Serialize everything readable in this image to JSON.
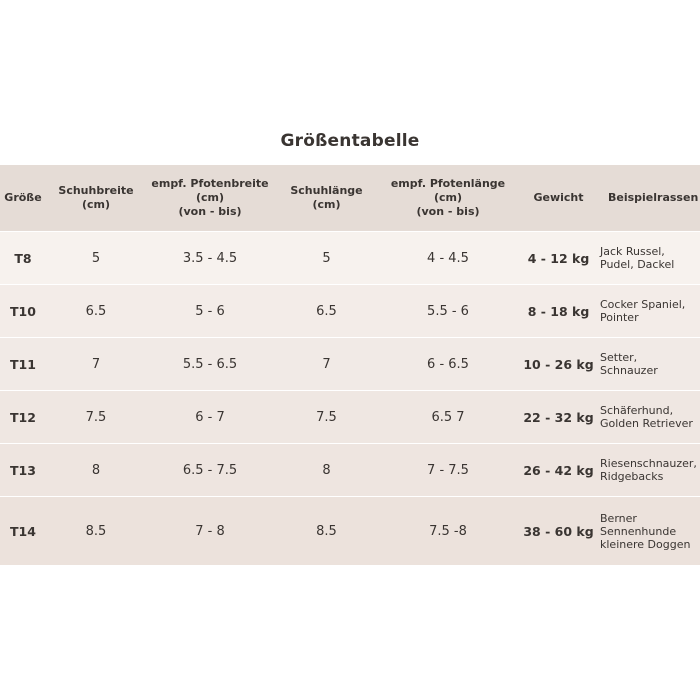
{
  "title": "Größentabelle",
  "columns": [
    "Größe",
    "Schuhbreite\n(cm)",
    "empf. Pfotenbreite\n(cm)\n(von - bis)",
    "Schuhlänge\n(cm)",
    "empf. Pfotenlänge\n(cm)\n(von - bis)",
    "Gewicht",
    "Beispielrassen"
  ],
  "rows": [
    {
      "size": "T8",
      "shoe_width": "5",
      "paw_width": "3.5 - 4.5",
      "shoe_length": "5",
      "paw_length": "4 - 4.5",
      "weight": "4 - 12 kg",
      "breeds": "Jack Russel,\nPudel, Dackel"
    },
    {
      "size": "T10",
      "shoe_width": "6.5",
      "paw_width": "5 - 6",
      "shoe_length": "6.5",
      "paw_length": "5.5 - 6",
      "weight": "8 - 18 kg",
      "breeds": "Cocker Spaniel,\nPointer"
    },
    {
      "size": "T11",
      "shoe_width": "7",
      "paw_width": "5.5 - 6.5",
      "shoe_length": "7",
      "paw_length": "6 - 6.5",
      "weight": "10 - 26 kg",
      "breeds": "Setter,\nSchnauzer"
    },
    {
      "size": "T12",
      "shoe_width": "7.5",
      "paw_width": "6 - 7",
      "shoe_length": "7.5",
      "paw_length": "6.5 7",
      "weight": "22 - 32 kg",
      "breeds": "Schäferhund,\nGolden Retriever"
    },
    {
      "size": "T13",
      "shoe_width": "8",
      "paw_width": "6.5 - 7.5",
      "shoe_length": "8",
      "paw_length": "7 - 7.5",
      "weight": "26 - 42 kg",
      "breeds": "Riesenschnauzer,\nRidgebacks"
    },
    {
      "size": "T14",
      "shoe_width": "8.5",
      "paw_width": "7 - 8",
      "shoe_length": "8.5",
      "paw_length": "7.5 -8",
      "weight": "38 - 60 kg",
      "breeds": "Berner\nSennenhunde\nkleinere Doggen"
    }
  ]
}
